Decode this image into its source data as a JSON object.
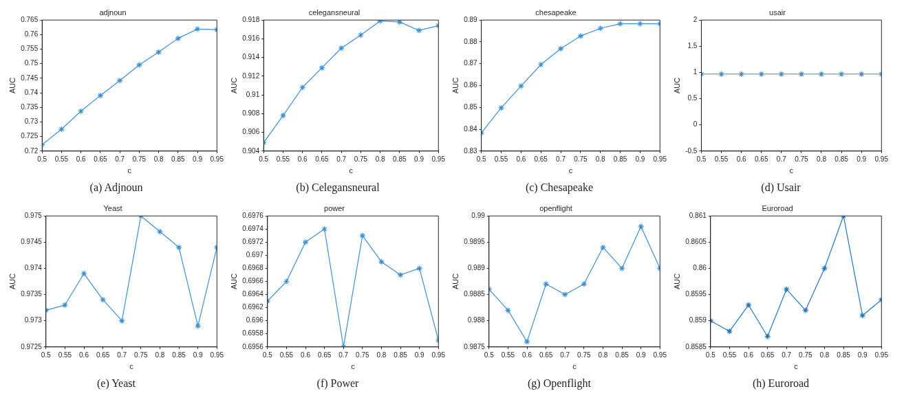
{
  "chart_data": [
    {
      "type": "line",
      "title": "adjnoun",
      "xlabel": "c",
      "ylabel": "AUC",
      "annotations": [
        "(a) Adjnoun"
      ],
      "marker": "cross",
      "x": [
        0.5,
        0.55,
        0.6,
        0.65,
        0.7,
        0.75,
        0.8,
        0.85,
        0.9,
        0.95
      ],
      "xlim": [
        0.5,
        0.95
      ],
      "xticks": [
        0.5,
        0.55,
        0.6,
        0.65,
        0.7,
        0.75,
        0.8,
        0.85,
        0.9,
        0.95
      ],
      "ylim": [
        0.72,
        0.765
      ],
      "yticks": [
        0.72,
        0.725,
        0.73,
        0.735,
        0.74,
        0.745,
        0.75,
        0.755,
        0.76,
        0.765
      ],
      "series": [
        {
          "color": "#3b8fd4",
          "values": [
            0.7222,
            0.7275,
            0.7337,
            0.7391,
            0.7442,
            0.7496,
            0.754,
            0.7587,
            0.7619,
            0.7617
          ]
        }
      ]
    },
    {
      "type": "line",
      "title": "celegansneural",
      "xlabel": "c",
      "ylabel": "AUC",
      "annotations": [
        "(b) Celegansneural"
      ],
      "marker": "cross",
      "x": [
        0.5,
        0.55,
        0.6,
        0.65,
        0.7,
        0.75,
        0.8,
        0.85,
        0.9,
        0.95
      ],
      "xlim": [
        0.5,
        0.95
      ],
      "xticks": [
        0.5,
        0.55,
        0.6,
        0.65,
        0.7,
        0.75,
        0.8,
        0.85,
        0.9,
        0.95
      ],
      "ylim": [
        0.904,
        0.918
      ],
      "yticks": [
        0.904,
        0.906,
        0.908,
        0.91,
        0.912,
        0.914,
        0.916,
        0.918
      ],
      "series": [
        {
          "color": "#3b8fd4",
          "values": [
            0.9049,
            0.9078,
            0.9108,
            0.9129,
            0.915,
            0.9164,
            0.9179,
            0.9178,
            0.9169,
            0.9174
          ]
        }
      ]
    },
    {
      "type": "line",
      "title": "chesapeake",
      "xlabel": "c",
      "ylabel": "AUC",
      "annotations": [
        "(c) Chesapeake"
      ],
      "marker": "cross",
      "x": [
        0.5,
        0.55,
        0.6,
        0.65,
        0.7,
        0.75,
        0.8,
        0.85,
        0.9,
        0.95
      ],
      "xlim": [
        0.5,
        0.95
      ],
      "xticks": [
        0.5,
        0.55,
        0.6,
        0.65,
        0.7,
        0.75,
        0.8,
        0.85,
        0.9,
        0.95
      ],
      "ylim": [
        0.83,
        0.89
      ],
      "yticks": [
        0.83,
        0.84,
        0.85,
        0.86,
        0.87,
        0.88,
        0.89
      ],
      "series": [
        {
          "color": "#3b8fd4",
          "values": [
            0.8383,
            0.8498,
            0.8598,
            0.8696,
            0.8769,
            0.8827,
            0.8862,
            0.8883,
            0.8883,
            0.8883
          ]
        }
      ]
    },
    {
      "type": "line",
      "title": "usair",
      "xlabel": "c",
      "ylabel": "AUC",
      "annotations": [
        "(d) Usair"
      ],
      "marker": "cross",
      "x": [
        0.5,
        0.55,
        0.6,
        0.65,
        0.7,
        0.75,
        0.8,
        0.85,
        0.9,
        0.95
      ],
      "xlim": [
        0.5,
        0.95
      ],
      "xticks": [
        0.5,
        0.55,
        0.6,
        0.65,
        0.7,
        0.75,
        0.8,
        0.85,
        0.9,
        0.95
      ],
      "ylim": [
        -0.5,
        2
      ],
      "yticks": [
        -0.5,
        0,
        0.5,
        1,
        1.5,
        2
      ],
      "series": [
        {
          "color": "#3b8fd4",
          "values": [
            0.97,
            0.97,
            0.97,
            0.97,
            0.97,
            0.97,
            0.97,
            0.97,
            0.97,
            0.97
          ]
        }
      ]
    },
    {
      "type": "line",
      "title": "Yeast",
      "xlabel": "c",
      "ylabel": "AUC",
      "annotations": [
        "(e) Yeast"
      ],
      "marker": "cross",
      "x": [
        0.5,
        0.55,
        0.6,
        0.65,
        0.7,
        0.75,
        0.8,
        0.85,
        0.9,
        0.95
      ],
      "xlim": [
        0.5,
        0.95
      ],
      "xticks": [
        0.5,
        0.55,
        0.6,
        0.65,
        0.7,
        0.75,
        0.8,
        0.85,
        0.9,
        0.95
      ],
      "ylim": [
        0.9725,
        0.975
      ],
      "yticks": [
        0.9725,
        0.973,
        0.9735,
        0.974,
        0.9745,
        0.975
      ],
      "series": [
        {
          "color": "#3b8fd4",
          "values": [
            0.9732,
            0.9733,
            0.9739,
            0.9734,
            0.973,
            0.975,
            0.9747,
            0.9744,
            0.9729,
            0.9744
          ]
        }
      ]
    },
    {
      "type": "line",
      "title": "power",
      "xlabel": "c",
      "ylabel": "AUC",
      "annotations": [
        "(f) Power"
      ],
      "marker": "cross",
      "x": [
        0.5,
        0.55,
        0.6,
        0.65,
        0.7,
        0.75,
        0.8,
        0.85,
        0.9,
        0.95
      ],
      "xlim": [
        0.5,
        0.95
      ],
      "xticks": [
        0.5,
        0.55,
        0.6,
        0.65,
        0.7,
        0.75,
        0.8,
        0.85,
        0.9,
        0.95
      ],
      "ylim": [
        0.6956,
        0.6976
      ],
      "yticks": [
        0.6956,
        0.6958,
        0.696,
        0.6962,
        0.6964,
        0.6966,
        0.6968,
        0.697,
        0.6972,
        0.6974,
        0.6976
      ],
      "series": [
        {
          "color": "#3b8fd4",
          "values": [
            0.6963,
            0.6966,
            0.6972,
            0.6974,
            0.6956,
            0.6973,
            0.6969,
            0.6967,
            0.6968,
            0.6957
          ]
        }
      ]
    },
    {
      "type": "line",
      "title": "openflight",
      "xlabel": "c",
      "ylabel": "AUC",
      "annotations": [
        "(g) Openflight"
      ],
      "marker": "cross",
      "x": [
        0.5,
        0.55,
        0.6,
        0.65,
        0.7,
        0.75,
        0.8,
        0.85,
        0.9,
        0.95
      ],
      "xlim": [
        0.5,
        0.95
      ],
      "xticks": [
        0.5,
        0.55,
        0.6,
        0.65,
        0.7,
        0.75,
        0.8,
        0.85,
        0.9,
        0.95
      ],
      "ylim": [
        0.9875,
        0.99
      ],
      "yticks": [
        0.9875,
        0.988,
        0.9885,
        0.989,
        0.9895,
        0.99
      ],
      "series": [
        {
          "color": "#3b8fd4",
          "values": [
            0.9886,
            0.9882,
            0.9876,
            0.9887,
            0.9885,
            0.9887,
            0.9894,
            0.989,
            0.9898,
            0.989
          ]
        }
      ]
    },
    {
      "type": "line",
      "title": "Euroroad",
      "xlabel": "c",
      "ylabel": "AUC",
      "annotations": [
        "(h) Euroroad"
      ],
      "marker": "cross",
      "x": [
        0.5,
        0.55,
        0.6,
        0.65,
        0.7,
        0.75,
        0.8,
        0.85,
        0.9,
        0.95
      ],
      "xlim": [
        0.5,
        0.95
      ],
      "xticks": [
        0.5,
        0.55,
        0.6,
        0.65,
        0.7,
        0.75,
        0.8,
        0.85,
        0.9,
        0.95
      ],
      "ylim": [
        0.8585,
        0.861
      ],
      "yticks": [
        0.8585,
        0.859,
        0.8595,
        0.86,
        0.8605,
        0.861
      ],
      "series": [
        {
          "color": "#1f77c4",
          "values": [
            0.859,
            0.8588,
            0.8593,
            0.8587,
            0.8596,
            0.8592,
            0.86,
            0.861,
            0.8591,
            0.8594
          ]
        }
      ]
    }
  ]
}
